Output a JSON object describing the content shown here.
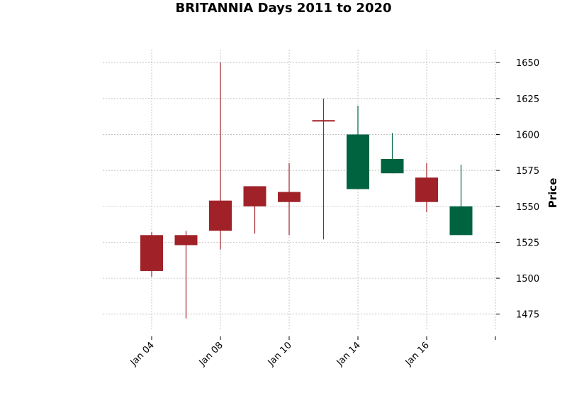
{
  "chart_data": {
    "type": "candlestick",
    "title": "BRITANNIA Days 2011 to 2020",
    "xlabel": "",
    "ylabel": "Price",
    "ylim": [
      1464,
      1659
    ],
    "grid": true,
    "yticks": [
      1475,
      1500,
      1525,
      1550,
      1575,
      1600,
      1625,
      1650
    ],
    "xtick_labels": [
      "Jan 04",
      "Jan 08",
      "Jan 10",
      "Jan 14",
      "Jan 16",
      ""
    ],
    "colors": {
      "up": "#006340",
      "down": "#a02128",
      "grid": "#b0b0b0"
    },
    "candles": [
      {
        "open": 1530,
        "high": 1532,
        "low": 1501,
        "close": 1505
      },
      {
        "open": 1530,
        "high": 1533,
        "low": 1472,
        "close": 1523
      },
      {
        "open": 1554,
        "high": 1650,
        "low": 1520,
        "close": 1533
      },
      {
        "open": 1564,
        "high": 1564,
        "low": 1531,
        "close": 1550
      },
      {
        "open": 1560,
        "high": 1580,
        "low": 1530,
        "close": 1553
      },
      {
        "open": 1610,
        "high": 1625,
        "low": 1527,
        "close": 1609
      },
      {
        "open": 1562,
        "high": 1620,
        "low": 1562,
        "close": 1600
      },
      {
        "open": 1573,
        "high": 1601,
        "low": 1573,
        "close": 1583
      },
      {
        "open": 1570,
        "high": 1580,
        "low": 1546,
        "close": 1553
      },
      {
        "open": 1530,
        "high": 1579,
        "low": 1530,
        "close": 1550
      }
    ]
  }
}
